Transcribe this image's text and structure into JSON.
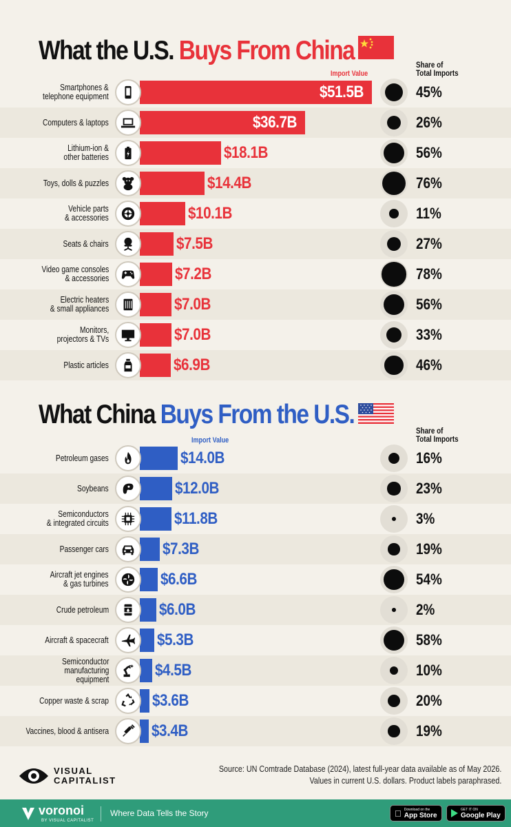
{
  "sections": [
    {
      "title_pre": "What the U.S. ",
      "title_hl": "Buys From China",
      "color": "#e8323a",
      "value_header": "Import Value",
      "share_header_1": "Share of",
      "share_header_2": "Total Imports",
      "flag": "china-flag"
    },
    {
      "title_pre": "What China ",
      "title_hl": "Buys From the U.S.",
      "color": "#2f5ec4",
      "value_header": "Import Value",
      "share_header_1": "Share of",
      "share_header_2": "Total Imports",
      "flag": "us-flag"
    }
  ],
  "chart_data": [
    {
      "type": "bar",
      "title": "What the U.S. Buys From China",
      "value_label": "Import Value",
      "share_label": "Share of Total Imports",
      "items": [
        {
          "label": "Smartphones & telephone equipment",
          "label_lines": [
            "Smartphones &",
            "telephone equipment"
          ],
          "value": 51.5,
          "value_text": "$51.5B",
          "share": 45,
          "share_text": "45%",
          "icon": "smartphone-icon"
        },
        {
          "label": "Computers & laptops",
          "label_lines": [
            "Computers & laptops"
          ],
          "value": 36.7,
          "value_text": "$36.7B",
          "share": 26,
          "share_text": "26%",
          "icon": "laptop-icon"
        },
        {
          "label": "Lithium-ion & other batteries",
          "label_lines": [
            "Lithium-ion &",
            "other batteries"
          ],
          "value": 18.1,
          "value_text": "$18.1B",
          "share": 56,
          "share_text": "56%",
          "icon": "battery-icon"
        },
        {
          "label": "Toys, dolls & puzzles",
          "label_lines": [
            "Toys, dolls & puzzles"
          ],
          "value": 14.4,
          "value_text": "$14.4B",
          "share": 76,
          "share_text": "76%",
          "icon": "teddy-bear-icon"
        },
        {
          "label": "Vehicle parts & accessories",
          "label_lines": [
            "Vehicle parts",
            "& accessories"
          ],
          "value": 10.1,
          "value_text": "$10.1B",
          "share": 11,
          "share_text": "11%",
          "icon": "tire-icon"
        },
        {
          "label": "Seats & chairs",
          "label_lines": [
            "Seats & chairs"
          ],
          "value": 7.5,
          "value_text": "$7.5B",
          "share": 27,
          "share_text": "27%",
          "icon": "chair-icon"
        },
        {
          "label": "Video game consoles & accessories",
          "label_lines": [
            "Video game consoles",
            "& accessories"
          ],
          "value": 7.2,
          "value_text": "$7.2B",
          "share": 78,
          "share_text": "78%",
          "icon": "gamepad-icon"
        },
        {
          "label": "Electric heaters & small appliances",
          "label_lines": [
            "Electric heaters",
            "& small appliances"
          ],
          "value": 7.0,
          "value_text": "$7.0B",
          "share": 56,
          "share_text": "56%",
          "icon": "heater-icon"
        },
        {
          "label": "Monitors, projectors & TVs",
          "label_lines": [
            "Monitors,",
            "projectors & TVs"
          ],
          "value": 7.0,
          "value_text": "$7.0B",
          "share": 33,
          "share_text": "33%",
          "icon": "monitor-icon"
        },
        {
          "label": "Plastic articles",
          "label_lines": [
            "Plastic articles"
          ],
          "value": 6.9,
          "value_text": "$6.9B",
          "share": 46,
          "share_text": "46%",
          "icon": "bottle-icon"
        }
      ]
    },
    {
      "type": "bar",
      "title": "What China Buys From the U.S.",
      "value_label": "Import Value",
      "share_label": "Share of Total Imports",
      "items": [
        {
          "label": "Petroleum gases",
          "label_lines": [
            "Petroleum gases"
          ],
          "value": 14.0,
          "value_text": "$14.0B",
          "share": 16,
          "share_text": "16%",
          "icon": "flame-icon"
        },
        {
          "label": "Soybeans",
          "label_lines": [
            "Soybeans"
          ],
          "value": 12.0,
          "value_text": "$12.0B",
          "share": 23,
          "share_text": "23%",
          "icon": "soybean-icon"
        },
        {
          "label": "Semiconductors & integrated circuits",
          "label_lines": [
            "Semiconductors",
            "& integrated circuits"
          ],
          "value": 11.8,
          "value_text": "$11.8B",
          "share": 3,
          "share_text": "3%",
          "icon": "chip-icon"
        },
        {
          "label": "Passenger cars",
          "label_lines": [
            "Passenger cars"
          ],
          "value": 7.3,
          "value_text": "$7.3B",
          "share": 19,
          "share_text": "19%",
          "icon": "car-icon"
        },
        {
          "label": "Aircraft jet engines & gas turbines",
          "label_lines": [
            "Aircraft jet engines",
            "& gas turbines"
          ],
          "value": 6.6,
          "value_text": "$6.6B",
          "share": 54,
          "share_text": "54%",
          "icon": "turbine-icon"
        },
        {
          "label": "Crude petroleum",
          "label_lines": [
            "Crude petroleum"
          ],
          "value": 6.0,
          "value_text": "$6.0B",
          "share": 2,
          "share_text": "2%",
          "icon": "oil-barrel-icon"
        },
        {
          "label": "Aircraft & spacecraft",
          "label_lines": [
            "Aircraft & spacecraft"
          ],
          "value": 5.3,
          "value_text": "$5.3B",
          "share": 58,
          "share_text": "58%",
          "icon": "airplane-icon"
        },
        {
          "label": "Semiconductor manufacturing equipment",
          "label_lines": [
            "Semiconductor",
            "manufacturing",
            "equipment"
          ],
          "value": 4.5,
          "value_text": "$4.5B",
          "share": 10,
          "share_text": "10%",
          "icon": "robot-arm-icon"
        },
        {
          "label": "Copper waste & scrap",
          "label_lines": [
            "Copper waste & scrap"
          ],
          "value": 3.6,
          "value_text": "$3.6B",
          "share": 20,
          "share_text": "20%",
          "icon": "recycle-icon"
        },
        {
          "label": "Vaccines, blood & antisera",
          "label_lines": [
            "Vaccines, blood & antisera"
          ],
          "value": 3.4,
          "value_text": "$3.4B",
          "share": 19,
          "share_text": "19%",
          "icon": "syringe-icon"
        }
      ]
    }
  ],
  "source_line_1": "Source: UN Comtrade Database (2024), latest full-year data available as of May 2026.",
  "source_line_2": "Values in current U.S. dollars. Product labels paraphrased.",
  "logo_line_1": "VISUAL",
  "logo_line_2": "CAPITALIST",
  "footer": {
    "brand": "voronoi",
    "byline": "BY VISUAL CAPITALIST",
    "tagline": "Where Data Tells the Story",
    "appstore_small": "Download on the",
    "appstore_big": "App Store",
    "googleplay_small": "GET IT ON",
    "googleplay_big": "Google Play"
  }
}
